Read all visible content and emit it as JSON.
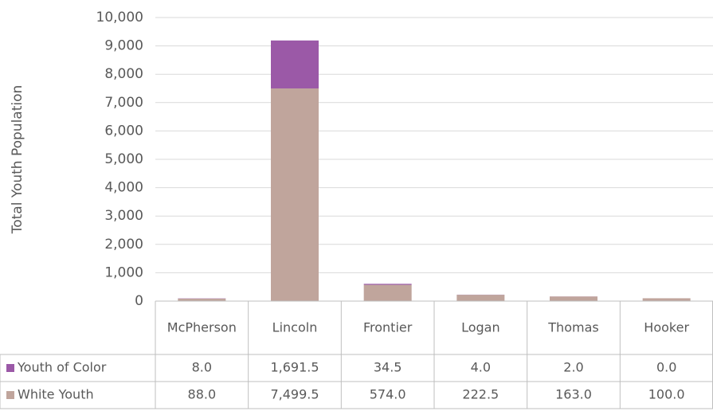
{
  "chart_data": {
    "type": "stacked_bar",
    "y_label": "Total Youth Population",
    "categories": [
      "McPherson",
      "Lincoln",
      "Frontier",
      "Logan",
      "Thomas",
      "Hooker"
    ],
    "series": [
      {
        "name": "Youth of Color",
        "color": "#9b59a7",
        "values": [
          8,
          1691.5,
          34.5,
          4,
          2,
          0
        ],
        "value_labels": [
          "8.0",
          "1,691.5",
          "34.5",
          "4.0",
          "2.0",
          "0.0"
        ]
      },
      {
        "name": "White Youth",
        "color": "#c0a59c",
        "values": [
          88,
          7499.5,
          574,
          222.5,
          163,
          100
        ],
        "value_labels": [
          "88.0",
          "7,499.5",
          "574.0",
          "222.5",
          "163.0",
          "100.0"
        ]
      }
    ],
    "ylim": [
      0,
      10000
    ],
    "yticks": [
      0,
      {
        "value": 1000,
        "label": "1,000"
      },
      {
        "value": 2000,
        "label": "2,000"
      },
      {
        "value": 3000,
        "label": "3,000"
      },
      {
        "value": 4000,
        "label": "4,000"
      },
      {
        "value": 5000,
        "label": "5,000"
      },
      {
        "value": 6000,
        "label": "6,000"
      },
      {
        "value": 7000,
        "label": "7,000"
      },
      {
        "value": 8000,
        "label": "8,000"
      },
      {
        "value": 9000,
        "label": "9,000"
      },
      {
        "value": 10000,
        "label": "10,000"
      }
    ],
    "grid": true
  }
}
